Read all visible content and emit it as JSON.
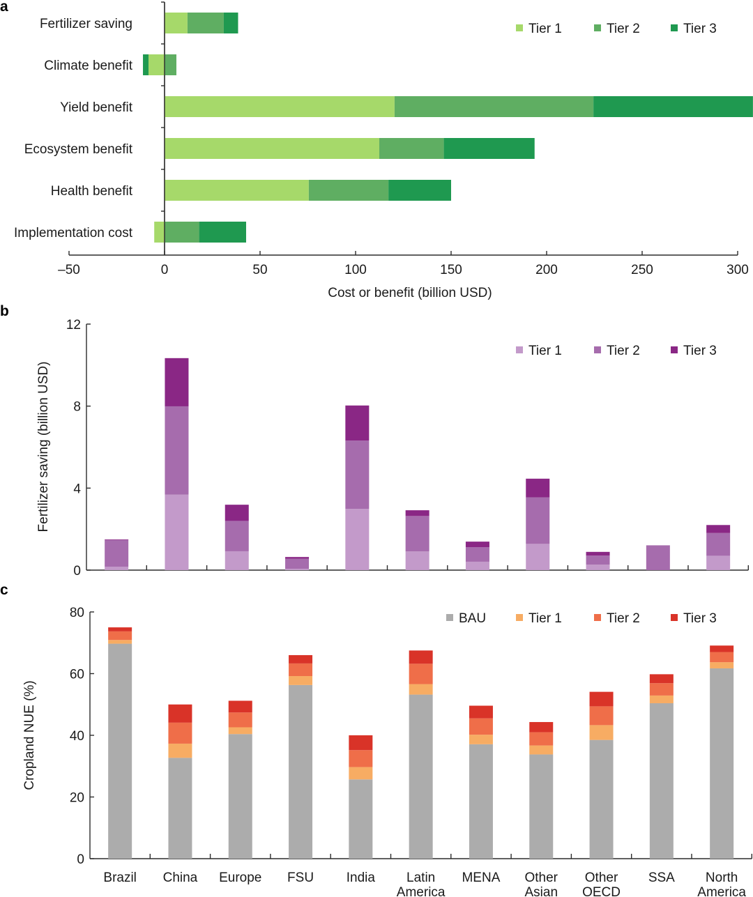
{
  "chart_data": [
    {
      "panel": "a",
      "type": "bar",
      "orientation": "horizontal",
      "stacked": true,
      "title": "",
      "xlabel": "Cost or benefit (billion USD)",
      "ylabel": "",
      "xlim": [
        -50,
        300
      ],
      "xticks": [
        -50,
        0,
        50,
        100,
        150,
        200,
        250,
        300
      ],
      "xtick_labels": [
        "–50",
        "0",
        "50",
        "100",
        "150",
        "200",
        "250",
        "300"
      ],
      "categories": [
        "Fertilizer saving",
        "Climate benefit",
        "Yield benefit",
        "Ecosystem benefit",
        "Health benefit",
        "Implementation cost"
      ],
      "series": [
        {
          "name": "Tier 1",
          "color": "#a6d96a",
          "values": [
            12.0,
            -8.4,
            120.4,
            112.4,
            75.5,
            -5.4
          ]
        },
        {
          "name": "Tier 2",
          "color": "#5fae62",
          "values": [
            19.0,
            6.2,
            104.1,
            33.8,
            41.7,
            18.1
          ]
        },
        {
          "name": "Tier 3",
          "color": "#1f9950",
          "values": [
            7.5,
            -2.9,
            83.5,
            47.5,
            32.8,
            24.6
          ]
        }
      ],
      "legend": [
        "Tier 1",
        "Tier 2",
        "Tier 3"
      ],
      "legend_position": "top-right",
      "grid": false
    },
    {
      "panel": "b",
      "type": "bar",
      "stacked": true,
      "title": "",
      "xlabel": "",
      "ylabel": "Fertilizer saving (billion USD)",
      "ylim": [
        0,
        12
      ],
      "yticks": [
        0,
        4,
        8,
        12
      ],
      "categories": [
        "Brazil",
        "China",
        "Europe",
        "FSU",
        "India",
        "Latin America",
        "MENA",
        "Other Asian",
        "Other OECD",
        "SSA",
        "North America"
      ],
      "series": [
        {
          "name": "Tier 1",
          "color": "#c39aca",
          "values": [
            0.16,
            3.68,
            0.92,
            0.06,
            2.99,
            0.91,
            0.41,
            1.28,
            0.27,
            0.0,
            0.7
          ]
        },
        {
          "name": "Tier 2",
          "color": "#a66cad",
          "values": [
            1.31,
            4.31,
            1.48,
            0.5,
            3.33,
            1.73,
            0.71,
            2.27,
            0.44,
            1.21,
            1.11
          ]
        },
        {
          "name": "Tier 3",
          "color": "#8a2785",
          "values": [
            0.03,
            2.35,
            0.79,
            0.08,
            1.71,
            0.28,
            0.27,
            0.91,
            0.18,
            0.0,
            0.39
          ]
        }
      ],
      "legend": [
        "Tier 1",
        "Tier 2",
        "Tier 3"
      ],
      "legend_position": "top-right",
      "grid": false
    },
    {
      "panel": "c",
      "type": "bar",
      "stacked": true,
      "title": "",
      "xlabel": "",
      "ylabel": "Cropland NUE (%)",
      "ylim": [
        0,
        80
      ],
      "yticks": [
        0,
        20,
        40,
        60,
        80
      ],
      "categories": [
        "Brazil",
        "China",
        "Europe",
        "FSU",
        "India",
        "Latin America",
        "MENA",
        "Other Asian",
        "Other OECD",
        "SSA",
        "North America"
      ],
      "category_lines": [
        [
          "Brazil"
        ],
        [
          "China"
        ],
        [
          "Europe"
        ],
        [
          "FSU"
        ],
        [
          "India"
        ],
        [
          "Latin",
          "America"
        ],
        [
          "MENA"
        ],
        [
          "Other",
          "Asian"
        ],
        [
          "Other",
          "OECD"
        ],
        [
          "SSA"
        ],
        [
          "North",
          "America"
        ]
      ],
      "series": [
        {
          "name": "BAU",
          "color": "#acacac",
          "values": [
            69.7,
            32.7,
            40.4,
            56.3,
            25.7,
            53.2,
            37.1,
            33.8,
            38.5,
            50.4,
            61.7
          ]
        },
        {
          "name": "Tier 1",
          "color": "#f7ac63",
          "values": [
            1.2,
            4.6,
            2.2,
            2.9,
            4.0,
            3.4,
            3.1,
            2.9,
            4.8,
            2.5,
            2.0
          ]
        },
        {
          "name": "Tier 2",
          "color": "#ef6e49",
          "values": [
            2.8,
            6.8,
            4.8,
            4.1,
            5.5,
            6.6,
            5.3,
            4.3,
            6.1,
            4.0,
            3.3
          ]
        },
        {
          "name": "Tier 3",
          "color": "#d93328",
          "values": [
            1.3,
            5.9,
            3.8,
            2.7,
            4.8,
            4.3,
            4.1,
            3.3,
            4.7,
            2.9,
            2.1
          ]
        }
      ],
      "legend": [
        "BAU",
        "Tier 1",
        "Tier 2",
        "Tier 3"
      ],
      "legend_position": "top-right",
      "grid": false
    }
  ],
  "panel_letters": [
    "a",
    "b",
    "c"
  ]
}
